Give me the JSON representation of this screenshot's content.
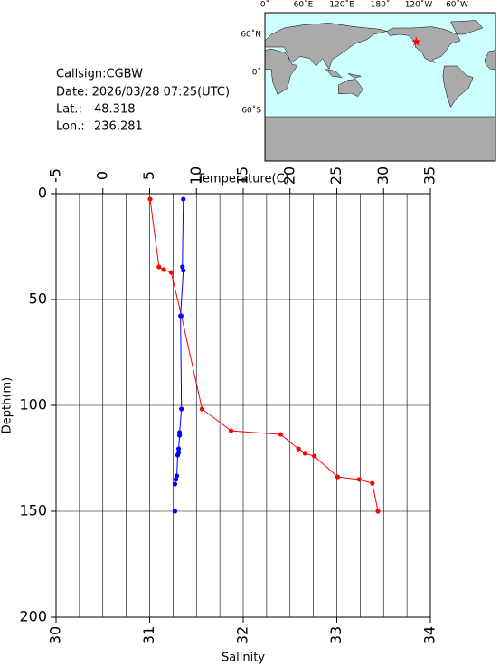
{
  "info": {
    "callsign": "Callsign:CGBW",
    "date": "Date:  2026/03/28 07:25(UTC)",
    "lat_label": "Lat.:",
    "lat": 48.318,
    "lon_label": "Lon.:",
    "lon": 236.281
  },
  "map": {
    "top_labels": [
      "0˚",
      "60˚E",
      "120˚E",
      "180˚",
      "120˚W",
      "60˚W"
    ],
    "left_labels": [
      "60˚N",
      "0˚",
      "60˚S"
    ]
  },
  "chart_data": {
    "type": "profile",
    "x2label": "Temperature(C)",
    "xlabel": "Salinity",
    "ylabel": "Depth(m)",
    "x2lim": [
      -5,
      35
    ],
    "x2ticks": [
      -5,
      0,
      5,
      10,
      15,
      20,
      25,
      30,
      35
    ],
    "xlim": [
      30,
      34
    ],
    "xticks": [
      30,
      31,
      32,
      33,
      34
    ],
    "ylim": [
      0,
      200
    ],
    "yticks": [
      0,
      50,
      100,
      150,
      200
    ],
    "y_reversed": true,
    "grid": true,
    "series": [
      {
        "color": "#ff0000",
        "axis": "x2",
        "x": [
          5.05,
          6.0,
          6.5,
          7.3,
          8.4,
          10.6,
          13.7,
          19.0,
          20.9,
          21.6,
          22.6,
          25.1,
          27.4,
          28.8,
          29.4
        ],
        "y": [
          2.6,
          34.6,
          35.9,
          37.2,
          57.7,
          101.7,
          112,
          113.7,
          120.5,
          122.6,
          124,
          133.8,
          135,
          136.8,
          150
        ]
      },
      {
        "color": "#0000ff",
        "axis": "x",
        "x": [
          31.36,
          31.35,
          31.36,
          31.33,
          31.34,
          31.32,
          31.32,
          31.31,
          31.31,
          31.3,
          31.29,
          31.28,
          31.27,
          31.27
        ],
        "y": [
          2.6,
          34.6,
          36.3,
          57.7,
          101.7,
          112.8,
          114.1,
          120.5,
          122.2,
          123.5,
          133.3,
          135,
          137.2,
          150
        ]
      }
    ]
  }
}
